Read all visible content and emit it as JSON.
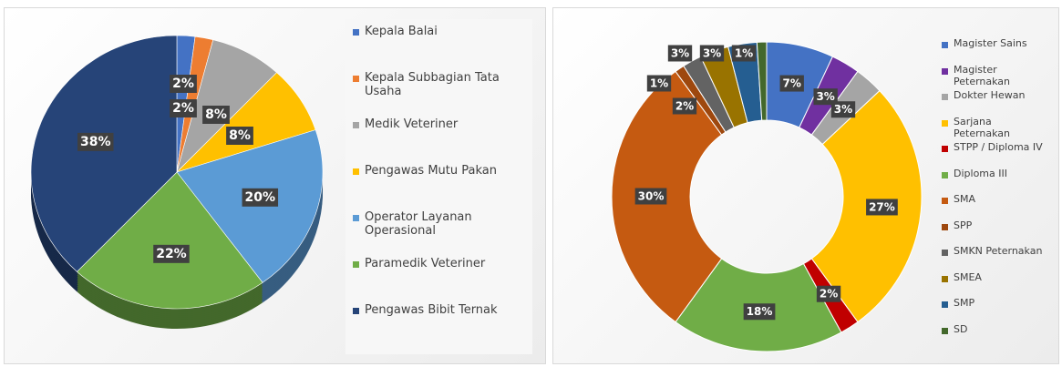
{
  "chart_data": [
    {
      "type": "pie3d",
      "categories": [
        "Kepala Balai",
        "Kepala Subbagian Tata Usaha",
        "Medik Veteriner",
        "Pengawas Mutu Pakan",
        "Operator Layanan Operasional",
        "Paramedik Veteriner",
        "Pengawas Bibit Ternak"
      ],
      "values": [
        2,
        2,
        8,
        8,
        20,
        22,
        38
      ],
      "value_labels": [
        "2%",
        "2%",
        "8%",
        "8%",
        "20%",
        "22%",
        "38%"
      ],
      "colors": [
        "#4472c4",
        "#ed7d31",
        "#a5a5a5",
        "#ffc000",
        "#5b9bd5",
        "#70ad47",
        "#264478"
      ]
    },
    {
      "type": "donut",
      "categories": [
        "Magister Sains",
        "Magister Peternakan",
        "Dokter Hewan",
        "Sarjana Peternakan",
        "STPP / Diploma IV",
        "Diploma III",
        "SMA",
        "SPP",
        "SMKN Peternakan",
        "SMEA",
        "SMP",
        "SD"
      ],
      "values": [
        7,
        3,
        3,
        27,
        2,
        18,
        30,
        1,
        2,
        3,
        3,
        1
      ],
      "value_labels": [
        "7%",
        "3%",
        "3%",
        "27%",
        "2%",
        "18%",
        "30%",
        "1%",
        "2%",
        "3%",
        "3%",
        "1%"
      ],
      "colors": [
        "#4472c4",
        "#7030a0",
        "#a5a5a5",
        "#ffc000",
        "#c00000",
        "#70ad47",
        "#c55a11",
        "#9e480e",
        "#636363",
        "#997300",
        "#255e91",
        "#43682b"
      ]
    }
  ]
}
